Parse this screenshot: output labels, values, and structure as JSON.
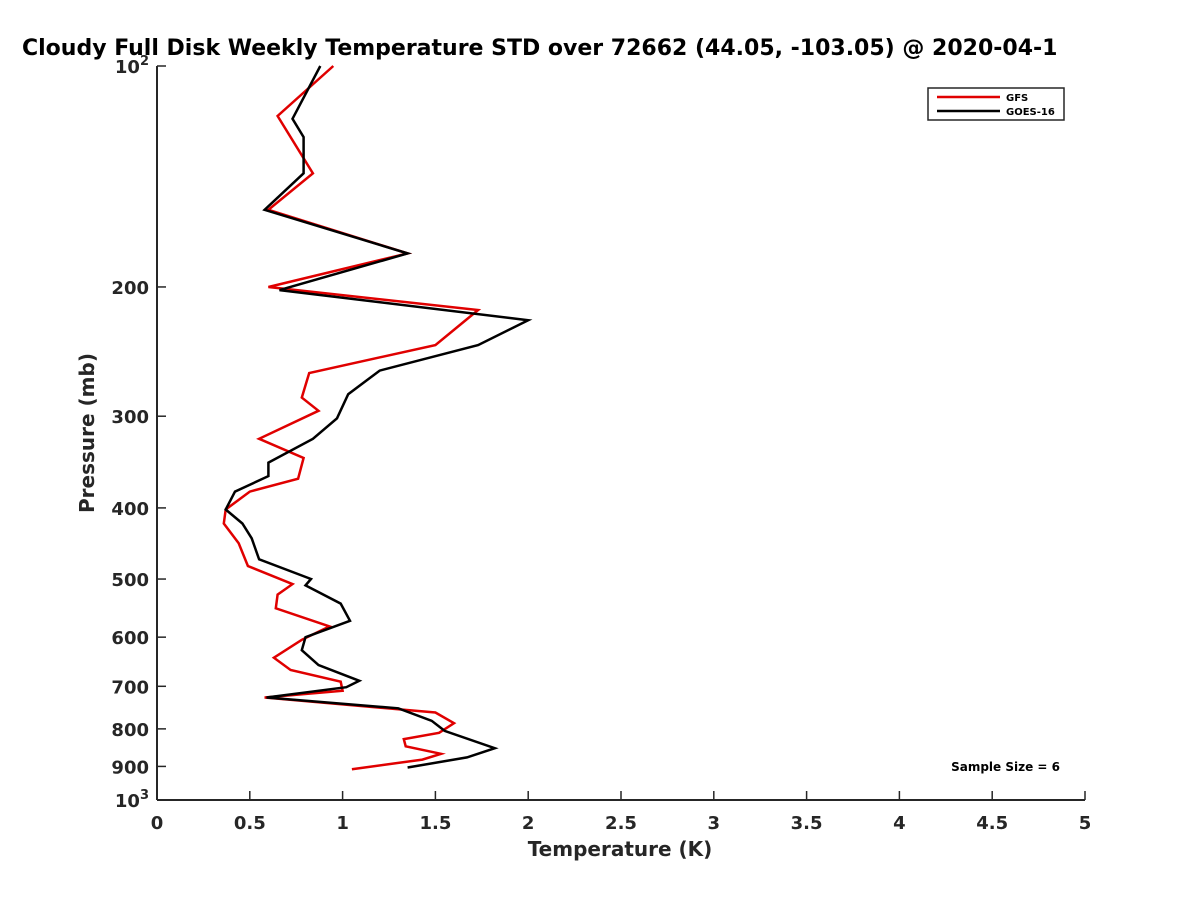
{
  "chart_data": {
    "type": "line",
    "title": "Cloudy Full Disk Weekly Temperature STD over 72662 (44.05, -103.05) @ 2020-04-1",
    "xlabel": "Temperature (K)",
    "ylabel": "Pressure (mb)",
    "xlim": [
      0,
      5
    ],
    "ylim": [
      1000,
      100
    ],
    "yscale": "log",
    "y_reversed": true,
    "grid": false,
    "legend_position": "top-right",
    "xticks": [
      0,
      0.5,
      1,
      1.5,
      2,
      2.5,
      3,
      3.5,
      4,
      4.5,
      5
    ],
    "xtick_labels": [
      "0",
      "0.5",
      "1",
      "1.5",
      "2",
      "2.5",
      "3",
      "3.5",
      "4",
      "4.5",
      "5"
    ],
    "yticks": [
      100,
      200,
      300,
      400,
      500,
      600,
      700,
      800,
      900,
      1000
    ],
    "ytick_labels": [
      {
        "base": "10",
        "exp": "2"
      },
      {
        "base": "200",
        "exp": ""
      },
      {
        "base": "300",
        "exp": ""
      },
      {
        "base": "400",
        "exp": ""
      },
      {
        "base": "500",
        "exp": ""
      },
      {
        "base": "600",
        "exp": ""
      },
      {
        "base": "700",
        "exp": ""
      },
      {
        "base": "800",
        "exp": ""
      },
      {
        "base": "900",
        "exp": ""
      },
      {
        "base": "10",
        "exp": "3"
      }
    ],
    "annotation": "Sample Size = 6",
    "series": [
      {
        "name": "GFS",
        "color": "#e00000",
        "x": [
          0.95,
          0.65,
          0.84,
          0.6,
          1.35,
          0.6,
          1.73,
          1.5,
          0.82,
          0.78,
          0.87,
          0.55,
          0.79,
          0.76,
          0.5,
          0.37,
          0.36,
          0.44,
          0.49,
          0.73,
          0.65,
          0.64,
          0.93,
          0.78,
          0.63,
          0.72,
          0.99,
          1.0,
          0.58,
          1.5,
          1.6,
          1.52,
          1.33,
          1.34,
          1.53,
          1.43,
          1.05
        ],
        "y": [
          100,
          117,
          140,
          157,
          180,
          200,
          215,
          240,
          262,
          283,
          295,
          322,
          342,
          365,
          380,
          402,
          420,
          447,
          480,
          508,
          525,
          548,
          580,
          605,
          640,
          665,
          690,
          710,
          725,
          760,
          786,
          810,
          826,
          845,
          865,
          881,
          908
        ]
      },
      {
        "name": "GOES-16",
        "color": "#000000",
        "x": [
          0.88,
          0.73,
          0.79,
          0.79,
          0.58,
          1.35,
          0.66,
          2.0,
          1.73,
          1.2,
          1.03,
          0.97,
          0.84,
          0.6,
          0.6,
          0.42,
          0.37,
          0.46,
          0.51,
          0.55,
          0.83,
          0.8,
          0.99,
          1.04,
          0.8,
          0.78,
          0.87,
          1.09,
          1.02,
          0.59,
          1.3,
          1.48,
          1.55,
          1.82,
          1.67,
          1.35
        ],
        "y": [
          100,
          118,
          125,
          140,
          157,
          180,
          202,
          222,
          240,
          260,
          280,
          302,
          322,
          347,
          362,
          380,
          402,
          420,
          440,
          470,
          500,
          510,
          540,
          570,
          600,
          625,
          655,
          688,
          702,
          725,
          750,
          780,
          805,
          850,
          875,
          903
        ]
      }
    ]
  }
}
